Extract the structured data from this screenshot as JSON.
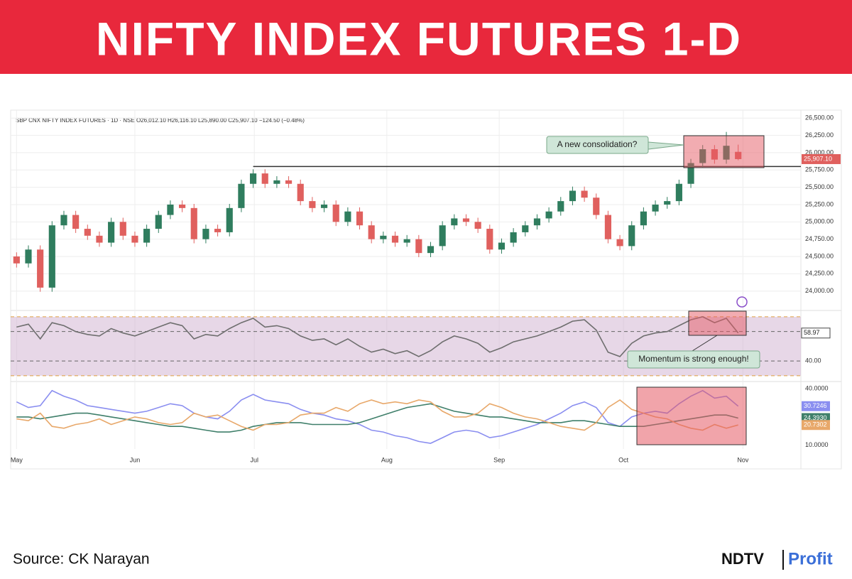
{
  "header": {
    "title": "NIFTY INDEX FUTURES 1-D"
  },
  "footer": {
    "source": "Source:  CK Narayan",
    "logo_left": "NDTV",
    "logo_right": "Profit"
  },
  "annotations": [
    "A new consolidation?",
    "Momentum is strong enough!"
  ],
  "chart_data": [
    {
      "type": "candlestick",
      "title": "SBP CNX NIFTY INDEX FUTURES · 1D · NSE   O26,012.10  H26,116.10  L25,890.00  C25,907.10  −124.50 (−0.48%)",
      "up_color": "#2f7d5e",
      "down_color": "#e0605e",
      "open": [
        24500,
        24400,
        24600,
        24050,
        24950,
        25100,
        24900,
        24800,
        24700,
        25000,
        24800,
        24700,
        24900,
        25100,
        25250,
        25200,
        24750,
        24900,
        24850,
        25200,
        25550,
        25700,
        25550,
        25600,
        25550,
        25300,
        25200,
        25250,
        25000,
        25150,
        24950,
        24750,
        24800,
        24700,
        24750,
        24550,
        24650,
        24950,
        25050,
        25000,
        24900,
        24600,
        24700,
        24850,
        24950,
        25050,
        25150,
        25300,
        25450,
        25350,
        25100,
        24750,
        24650,
        24950,
        25150,
        25250,
        25300,
        25550,
        25850,
        26050,
        25900,
        26012.1
      ],
      "high": [
        24560,
        24660,
        24660,
        25010,
        25160,
        25160,
        24960,
        24860,
        25060,
        25060,
        24860,
        24960,
        25160,
        25310,
        25310,
        25260,
        24960,
        24960,
        25260,
        25610,
        25760,
        25760,
        25660,
        25660,
        25610,
        25360,
        25310,
        25310,
        25210,
        25210,
        25010,
        24860,
        24860,
        24810,
        24810,
        24710,
        25010,
        25110,
        25110,
        25060,
        24960,
        24760,
        24910,
        25010,
        25110,
        25210,
        25360,
        25510,
        25510,
        25410,
        25160,
        24810,
        25010,
        25210,
        25310,
        25360,
        25610,
        25910,
        26110,
        26110,
        26300,
        26116.1
      ],
      "low": [
        24340,
        24340,
        23990,
        23990,
        24890,
        24840,
        24740,
        24640,
        24640,
        24740,
        24640,
        24640,
        24840,
        25040,
        25140,
        24690,
        24690,
        24790,
        24790,
        25140,
        25490,
        25490,
        25490,
        25490,
        25240,
        25140,
        25140,
        24940,
        24940,
        24890,
        24690,
        24690,
        24640,
        24640,
        24490,
        24490,
        24590,
        24890,
        24940,
        24840,
        24540,
        24540,
        24640,
        24790,
        24890,
        24990,
        25090,
        25240,
        25290,
        25040,
        24690,
        24590,
        24590,
        24890,
        25090,
        25190,
        25240,
        25490,
        25790,
        25840,
        25840,
        25890
      ],
      "close": [
        24400,
        24600,
        24050,
        24950,
        25100,
        24900,
        24800,
        24700,
        25000,
        24800,
        24700,
        24900,
        25100,
        25250,
        25200,
        24750,
        24900,
        24850,
        25200,
        25550,
        25700,
        25550,
        25600,
        25550,
        25300,
        25200,
        25250,
        25000,
        25150,
        24950,
        24750,
        24800,
        24700,
        24750,
        24550,
        24650,
        24950,
        25050,
        25000,
        24900,
        24600,
        24700,
        24850,
        24950,
        25050,
        25150,
        25300,
        25450,
        25350,
        25100,
        24750,
        24650,
        24950,
        25150,
        25250,
        25300,
        25550,
        25850,
        26050,
        25900,
        26100,
        25907.1
      ],
      "last_label": "25,907.10",
      "hline": 25800,
      "xlim": [
        -0.5,
        66.3
      ],
      "xticks": [
        {
          "value": 0,
          "label": "May"
        },
        {
          "value": 10,
          "label": "Jun"
        },
        {
          "value": 20.1,
          "label": "Jul"
        },
        {
          "value": 31.3,
          "label": "Aug"
        },
        {
          "value": 40.8,
          "label": "Sep"
        },
        {
          "value": 51.3,
          "label": "Oct"
        },
        {
          "value": 61.4,
          "label": "Nov"
        }
      ],
      "ylim": [
        23720,
        26615
      ],
      "yticks": [
        {
          "value": 24000,
          "label": "24,000.00"
        },
        {
          "value": 24250,
          "label": "24,250.00"
        },
        {
          "value": 24500,
          "label": "24,500.00"
        },
        {
          "value": 24750,
          "label": "24,750.00"
        },
        {
          "value": 25000,
          "label": "25,000.00"
        },
        {
          "value": 25250,
          "label": "25,250.00"
        },
        {
          "value": 25500,
          "label": "25,500.00"
        },
        {
          "value": 25750,
          "label": "25,750.00"
        },
        {
          "value": 26000,
          "label": "26,000.00"
        },
        {
          "value": 26250,
          "label": "26,250.00"
        },
        {
          "value": 26500,
          "label": "26,500.00"
        }
      ],
      "grid": true
    },
    {
      "type": "line",
      "series": [
        {
          "color": "#6e6e6e",
          "last_label": "58.97",
          "values": [
            63,
            65,
            55,
            66,
            64,
            60,
            58,
            57,
            62,
            59,
            57,
            60,
            63,
            66,
            64,
            55,
            58,
            57,
            62,
            66,
            69,
            63,
            64,
            62,
            57,
            54,
            55,
            51,
            55,
            50,
            46,
            48,
            45,
            47,
            43,
            47,
            53,
            57,
            55,
            52,
            46,
            49,
            53,
            55,
            57,
            60,
            63,
            67,
            68,
            61,
            46,
            43,
            52,
            57,
            59,
            60,
            64,
            68,
            70,
            66,
            69,
            58.97
          ]
        }
      ],
      "band": [
        30,
        70
      ],
      "band_color": "#c9a6c9",
      "levels": [
        30,
        40,
        60,
        70
      ],
      "ylim": [
        28,
        74.3
      ],
      "yticks": [
        {
          "value": 40,
          "label": "40.00"
        }
      ]
    },
    {
      "type": "line",
      "series": [
        {
          "color": "#8a8ef0",
          "last_label": "30.7246",
          "values": [
            33,
            30,
            31,
            39,
            36,
            34,
            31,
            30,
            29,
            28,
            27,
            28,
            30,
            32,
            31,
            27,
            25,
            24,
            28,
            34,
            37,
            34,
            33,
            32,
            29,
            27,
            26,
            24,
            23,
            21,
            18,
            17,
            15,
            14,
            12,
            11,
            14,
            17,
            18,
            17,
            14,
            15,
            17,
            19,
            21,
            24,
            27,
            31,
            33,
            30,
            22,
            20,
            25,
            27,
            28,
            27,
            32,
            36,
            39,
            35,
            36,
            30.7246
          ]
        },
        {
          "color": "#3f7f6a",
          "last_label": "24.3930",
          "values": [
            25,
            25,
            24,
            25,
            26,
            27,
            27,
            26,
            25,
            24,
            23,
            22,
            21,
            20,
            20,
            19,
            18,
            17,
            17,
            18,
            20,
            21,
            22,
            22,
            22,
            21,
            21,
            21,
            21,
            22,
            24,
            26,
            28,
            30,
            31,
            32,
            30,
            28,
            27,
            26,
            25,
            25,
            24,
            23,
            22,
            22,
            22,
            23,
            23,
            22,
            21,
            20,
            20,
            20,
            21,
            22,
            23,
            24,
            25,
            26,
            26,
            24.393
          ]
        },
        {
          "color": "#e8a86a",
          "last_label": "20.7302",
          "values": [
            24,
            23,
            27,
            20,
            19,
            21,
            22,
            24,
            21,
            23,
            25,
            24,
            22,
            21,
            22,
            27,
            25,
            26,
            23,
            20,
            18,
            21,
            21,
            22,
            26,
            27,
            27,
            30,
            28,
            32,
            34,
            32,
            33,
            32,
            34,
            33,
            28,
            25,
            25,
            27,
            32,
            30,
            27,
            25,
            24,
            22,
            20,
            19,
            18,
            22,
            30,
            34,
            29,
            27,
            25,
            24,
            21,
            19,
            18,
            21,
            19,
            20.7302
          ]
        }
      ],
      "ylim": [
        8,
        42.3
      ],
      "yticks": [
        {
          "value": 40,
          "label": "40.0000"
        },
        {
          "value": 10,
          "label": "10.0000"
        }
      ]
    }
  ]
}
